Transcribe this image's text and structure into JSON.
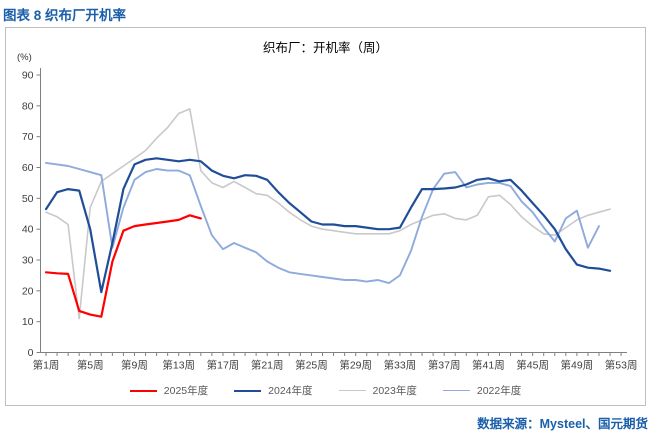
{
  "header": {
    "title": "图表 8 织布厂开机率"
  },
  "source": {
    "label": "数据来源：Mysteel、国元期货"
  },
  "colors": {
    "accent_blue_text": "#1B5FAA",
    "box_border": "#BFBFBF",
    "axis": "#808080",
    "tick_label": "#3F3F3F",
    "legend_label": "#595959"
  },
  "chart_data": {
    "type": "line",
    "title": "织布厂：开机率（周）",
    "y_unit": "(%)",
    "ylim": [
      0,
      90
    ],
    "y_ticks": [
      0,
      10,
      20,
      30,
      40,
      50,
      60,
      70,
      80,
      90
    ],
    "x_tick_weeks": [
      1,
      5,
      9,
      13,
      17,
      21,
      25,
      29,
      33,
      37,
      41,
      45,
      49,
      53
    ],
    "x_tick_labels": [
      "第1周",
      "第5周",
      "第9周",
      "第13周",
      "第17周",
      "第21周",
      "第25周",
      "第29周",
      "第33周",
      "第37周",
      "第41周",
      "第45周",
      "第49周",
      "第53周"
    ],
    "xlim_weeks": [
      1,
      53
    ],
    "grid": false,
    "legend_position": "bottom",
    "series": [
      {
        "name": "2025年度",
        "color": "#FF0000",
        "start_week": 1,
        "values": [
          26,
          25.7,
          25.5,
          13.5,
          12.3,
          11.6,
          29.5,
          39.5,
          41,
          41.5,
          42,
          42.5,
          43,
          44.5,
          43.5
        ]
      },
      {
        "name": "2024年度",
        "color": "#1F4E98",
        "start_week": 1,
        "values": [
          46.5,
          52,
          53,
          52.5,
          40,
          19.6,
          35.5,
          53,
          61,
          62.5,
          63,
          62.5,
          62,
          62.5,
          62,
          59,
          57.3,
          56.5,
          57.5,
          57.3,
          56,
          52,
          48.5,
          45.5,
          42.5,
          41.5,
          41.5,
          41,
          41,
          40.5,
          40,
          40,
          40.5,
          47,
          53,
          53,
          53.2,
          53.5,
          54.5,
          56,
          56.5,
          55.5,
          56,
          52.5,
          48.5,
          44.5,
          40,
          33.5,
          28.5,
          27.5,
          27.2,
          26.5
        ]
      },
      {
        "name": "2023年度",
        "color": "#C9C9C9",
        "start_week": 1,
        "values": [
          45.5,
          44,
          41.5,
          11,
          47,
          55.5,
          58,
          60.5,
          63,
          65.5,
          69.5,
          73,
          77.5,
          79,
          59,
          55,
          53.5,
          55.5,
          53.5,
          51.5,
          51,
          48.5,
          45.5,
          43,
          41,
          40,
          39.5,
          39,
          38.5,
          38.5,
          38.5,
          38.5,
          39.5,
          41.5,
          43,
          44.5,
          45,
          43.5,
          43,
          44.5,
          50.5,
          51,
          48,
          44,
          41,
          38.5,
          38,
          40.5,
          43,
          44.5,
          45.5,
          46.5
        ]
      },
      {
        "name": "2022年度",
        "color": "#8FAADC",
        "start_week": 1,
        "values": [
          61.5,
          61,
          60.5,
          59.5,
          58.5,
          57.5,
          34,
          47,
          56,
          58.5,
          59.5,
          59,
          59,
          57.5,
          47.5,
          38,
          33.5,
          35.5,
          34,
          32.5,
          29.5,
          27.5,
          26,
          25.5,
          25,
          24.5,
          24,
          23.5,
          23.5,
          23,
          23.5,
          22.5,
          25,
          33,
          44,
          53,
          58,
          58.5,
          53.5,
          54.5,
          55,
          55,
          54,
          49,
          45.5,
          40.5,
          36,
          43.5,
          46,
          34,
          41
        ]
      }
    ]
  }
}
